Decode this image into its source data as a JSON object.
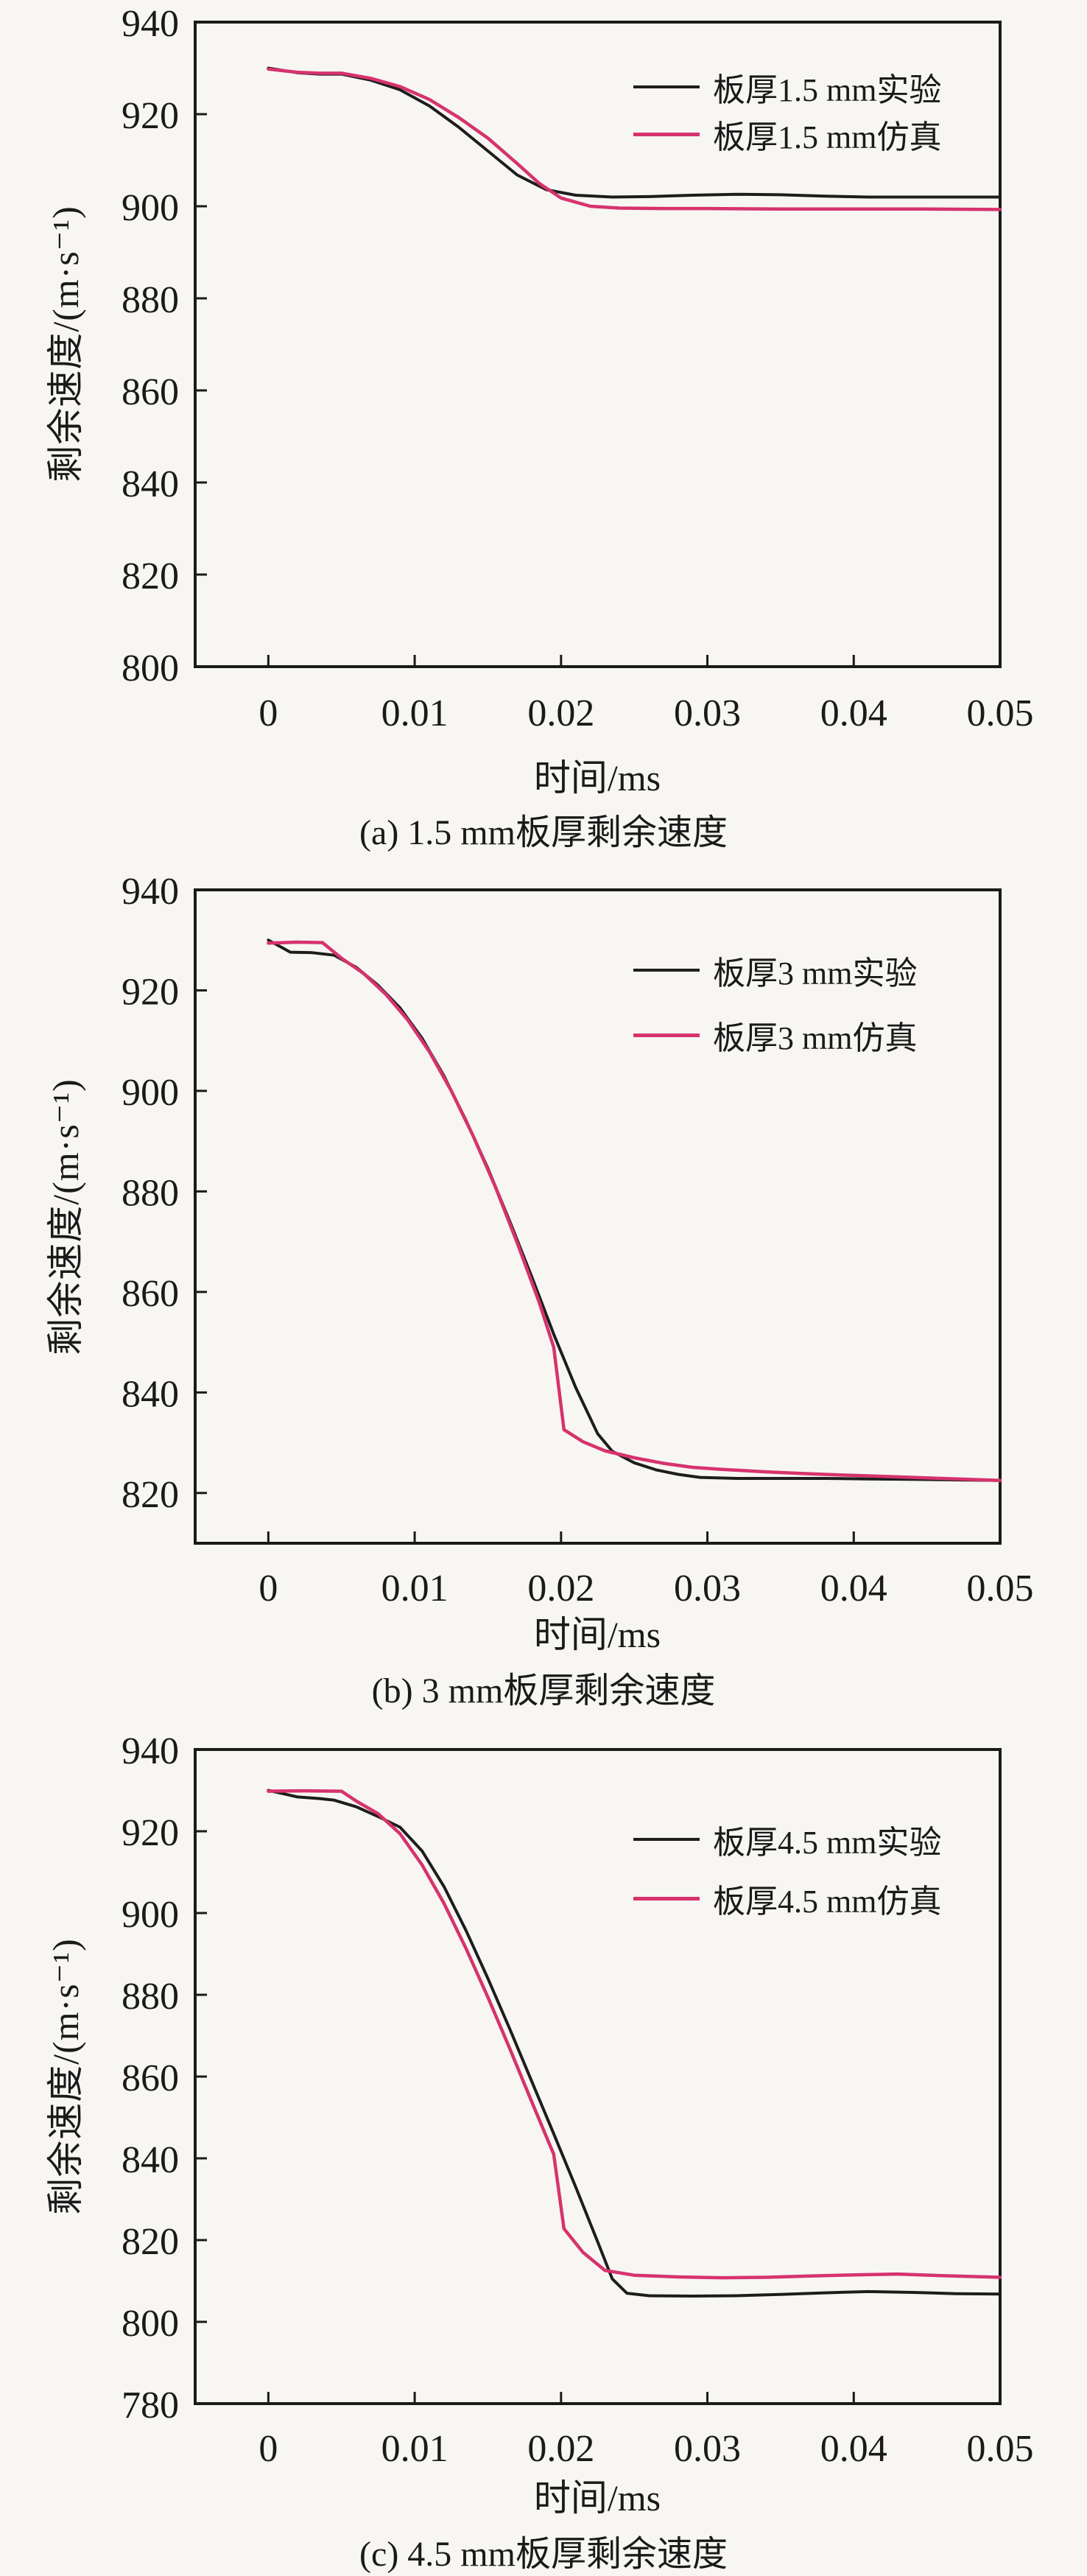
{
  "page": {
    "background": "#f7f6f3",
    "text_color": "#1a1a1a"
  },
  "colors": {
    "experiment_line": "#1d1d1d",
    "simulation_line": "#d6336e"
  },
  "chart_data": [
    {
      "id": "a",
      "type": "line",
      "caption": "(a) 1.5 mm板厚剩余速度",
      "xlabel": "时间/ms",
      "ylabel": "剩余速度/(m·s⁻¹)",
      "xlim": [
        -0.005,
        0.05
      ],
      "ylim": [
        800,
        940
      ],
      "grid": false,
      "legend_position": "top-right",
      "xticks": {
        "values": [
          0,
          0.01,
          0.02,
          0.03,
          0.04,
          0.05
        ],
        "labels": [
          "0",
          "0.01",
          "0.02",
          "0.03",
          "0.04",
          "0.05"
        ]
      },
      "yticks": {
        "values": [
          800,
          820,
          840,
          860,
          880,
          900,
          920,
          940
        ],
        "labels": [
          "800",
          "820",
          "840",
          "860",
          "880",
          "900",
          "920",
          "940"
        ]
      },
      "series": [
        {
          "name": "experiment",
          "label": "板厚1.5 mm实验",
          "color": "#1d1d1d",
          "points": [
            [
              0,
              930
            ],
            [
              0.002,
              929
            ],
            [
              0.0035,
              928.7
            ],
            [
              0.005,
              928.7
            ],
            [
              0.007,
              927.4
            ],
            [
              0.009,
              925.3
            ],
            [
              0.011,
              921.8
            ],
            [
              0.013,
              917.2
            ],
            [
              0.015,
              912
            ],
            [
              0.017,
              906.8
            ],
            [
              0.019,
              903.6
            ],
            [
              0.021,
              902.4
            ],
            [
              0.0235,
              902
            ],
            [
              0.026,
              902.1
            ],
            [
              0.029,
              902.4
            ],
            [
              0.032,
              902.6
            ],
            [
              0.035,
              902.5
            ],
            [
              0.038,
              902.2
            ],
            [
              0.041,
              902
            ],
            [
              0.044,
              902
            ],
            [
              0.047,
              902
            ],
            [
              0.05,
              902
            ]
          ]
        },
        {
          "name": "simulation",
          "label": "板厚1.5 mm仿真",
          "color": "#d6336e",
          "points": [
            [
              0,
              929.8
            ],
            [
              0.002,
              929.1
            ],
            [
              0.0035,
              928.9
            ],
            [
              0.005,
              928.9
            ],
            [
              0.007,
              927.8
            ],
            [
              0.009,
              926
            ],
            [
              0.011,
              923.2
            ],
            [
              0.013,
              919.3
            ],
            [
              0.015,
              914.8
            ],
            [
              0.017,
              909.3
            ],
            [
              0.0185,
              905
            ],
            [
              0.02,
              901.8
            ],
            [
              0.022,
              900
            ],
            [
              0.024,
              899.6
            ],
            [
              0.027,
              899.5
            ],
            [
              0.03,
              899.5
            ],
            [
              0.035,
              899.4
            ],
            [
              0.04,
              899.4
            ],
            [
              0.045,
              899.4
            ],
            [
              0.05,
              899.3
            ]
          ]
        }
      ]
    },
    {
      "id": "b",
      "type": "line",
      "caption": "(b) 3 mm板厚剩余速度",
      "xlabel": "时间/ms",
      "ylabel": "剩余速度/(m·s⁻¹)",
      "xlim": [
        -0.005,
        0.05
      ],
      "ylim": [
        810,
        940
      ],
      "grid": false,
      "legend_position": "top-right",
      "xticks": {
        "values": [
          0,
          0.01,
          0.02,
          0.03,
          0.04,
          0.05
        ],
        "labels": [
          "0",
          "0.01",
          "0.02",
          "0.03",
          "0.04",
          "0.05"
        ]
      },
      "yticks": {
        "values": [
          820,
          840,
          860,
          880,
          900,
          920,
          940
        ],
        "labels": [
          "820",
          "840",
          "860",
          "880",
          "900",
          "920",
          "940"
        ]
      },
      "series": [
        {
          "name": "experiment",
          "label": "板厚3 mm实验",
          "color": "#1d1d1d",
          "points": [
            [
              0,
              930
            ],
            [
              0.0015,
              927.6
            ],
            [
              0.003,
              927.5
            ],
            [
              0.0045,
              927
            ],
            [
              0.006,
              924.6
            ],
            [
              0.0075,
              921
            ],
            [
              0.009,
              916.5
            ],
            [
              0.0105,
              910.5
            ],
            [
              0.012,
              903
            ],
            [
              0.0135,
              894.2
            ],
            [
              0.015,
              884.6
            ],
            [
              0.0165,
              874
            ],
            [
              0.018,
              863
            ],
            [
              0.0195,
              851.6
            ],
            [
              0.021,
              841
            ],
            [
              0.0225,
              831.8
            ],
            [
              0.0235,
              828.3
            ],
            [
              0.025,
              826
            ],
            [
              0.0265,
              824.6
            ],
            [
              0.028,
              823.7
            ],
            [
              0.0295,
              823.1
            ],
            [
              0.032,
              822.9
            ],
            [
              0.035,
              822.9
            ],
            [
              0.038,
              822.9
            ],
            [
              0.041,
              822.8
            ],
            [
              0.044,
              822.7
            ],
            [
              0.047,
              822.6
            ],
            [
              0.05,
              822.5
            ]
          ]
        },
        {
          "name": "simulation",
          "label": "板厚3 mm仿真",
          "color": "#d6336e",
          "points": [
            [
              0,
              929.4
            ],
            [
              0.002,
              929.6
            ],
            [
              0.0037,
              929.5
            ],
            [
              0.005,
              926.4
            ],
            [
              0.0065,
              923.4
            ],
            [
              0.008,
              919.3
            ],
            [
              0.0095,
              914.2
            ],
            [
              0.011,
              907.8
            ],
            [
              0.0125,
              900
            ],
            [
              0.014,
              891
            ],
            [
              0.0155,
              881
            ],
            [
              0.017,
              869.8
            ],
            [
              0.0185,
              858
            ],
            [
              0.0195,
              849
            ],
            [
              0.0202,
              832.6
            ],
            [
              0.0215,
              830.2
            ],
            [
              0.023,
              828.4
            ],
            [
              0.025,
              827
            ],
            [
              0.027,
              825.9
            ],
            [
              0.029,
              825.1
            ],
            [
              0.031,
              824.7
            ],
            [
              0.034,
              824.2
            ],
            [
              0.037,
              823.8
            ],
            [
              0.04,
              823.5
            ],
            [
              0.043,
              823.2
            ],
            [
              0.046,
              822.9
            ],
            [
              0.05,
              822.5
            ]
          ]
        }
      ]
    },
    {
      "id": "c",
      "type": "line",
      "caption": "(c) 4.5 mm板厚剩余速度",
      "xlabel": "时间/ms",
      "ylabel": "剩余速度/(m·s⁻¹)",
      "xlim": [
        -0.005,
        0.05
      ],
      "ylim": [
        780,
        940
      ],
      "grid": false,
      "legend_position": "top-right",
      "xticks": {
        "values": [
          0,
          0.01,
          0.02,
          0.03,
          0.04,
          0.05
        ],
        "labels": [
          "0",
          "0.01",
          "0.02",
          "0.03",
          "0.04",
          "0.05"
        ]
      },
      "yticks": {
        "values": [
          780,
          800,
          820,
          840,
          860,
          880,
          900,
          920,
          940
        ],
        "labels": [
          "780",
          "800",
          "820",
          "840",
          "860",
          "880",
          "900",
          "920",
          "940"
        ]
      },
      "series": [
        {
          "name": "experiment",
          "label": "板厚4.5 mm实验",
          "color": "#1d1d1d",
          "points": [
            [
              0,
              930
            ],
            [
              0.002,
              928.4
            ],
            [
              0.0035,
              928
            ],
            [
              0.0045,
              927.6
            ],
            [
              0.006,
              926
            ],
            [
              0.0075,
              923.6
            ],
            [
              0.009,
              921
            ],
            [
              0.0105,
              915.2
            ],
            [
              0.012,
              906.5
            ],
            [
              0.0135,
              895.8
            ],
            [
              0.015,
              884
            ],
            [
              0.0165,
              871.6
            ],
            [
              0.018,
              858.8
            ],
            [
              0.0195,
              846
            ],
            [
              0.021,
              833
            ],
            [
              0.0225,
              819.6
            ],
            [
              0.0235,
              810.5
            ],
            [
              0.0245,
              807
            ],
            [
              0.026,
              806.4
            ],
            [
              0.029,
              806.3
            ],
            [
              0.032,
              806.4
            ],
            [
              0.035,
              806.7
            ],
            [
              0.038,
              807.1
            ],
            [
              0.041,
              807.4
            ],
            [
              0.044,
              807.2
            ],
            [
              0.047,
              806.9
            ],
            [
              0.05,
              806.8
            ]
          ]
        },
        {
          "name": "simulation",
          "label": "板厚4.5 mm仿真",
          "color": "#d6336e",
          "points": [
            [
              0,
              929.8
            ],
            [
              0.0025,
              929.9
            ],
            [
              0.005,
              929.8
            ],
            [
              0.006,
              927.4
            ],
            [
              0.0075,
              924.3
            ],
            [
              0.009,
              919.4
            ],
            [
              0.0105,
              911.8
            ],
            [
              0.012,
              902.4
            ],
            [
              0.0135,
              891.4
            ],
            [
              0.015,
              879.4
            ],
            [
              0.0165,
              866.8
            ],
            [
              0.018,
              853.8
            ],
            [
              0.0195,
              841
            ],
            [
              0.0202,
              822.8
            ],
            [
              0.0215,
              817
            ],
            [
              0.023,
              812.6
            ],
            [
              0.025,
              811.4
            ],
            [
              0.028,
              811
            ],
            [
              0.031,
              810.8
            ],
            [
              0.034,
              810.9
            ],
            [
              0.037,
              811.2
            ],
            [
              0.04,
              811.5
            ],
            [
              0.043,
              811.7
            ],
            [
              0.046,
              811.3
            ],
            [
              0.05,
              810.9
            ]
          ]
        }
      ]
    }
  ]
}
